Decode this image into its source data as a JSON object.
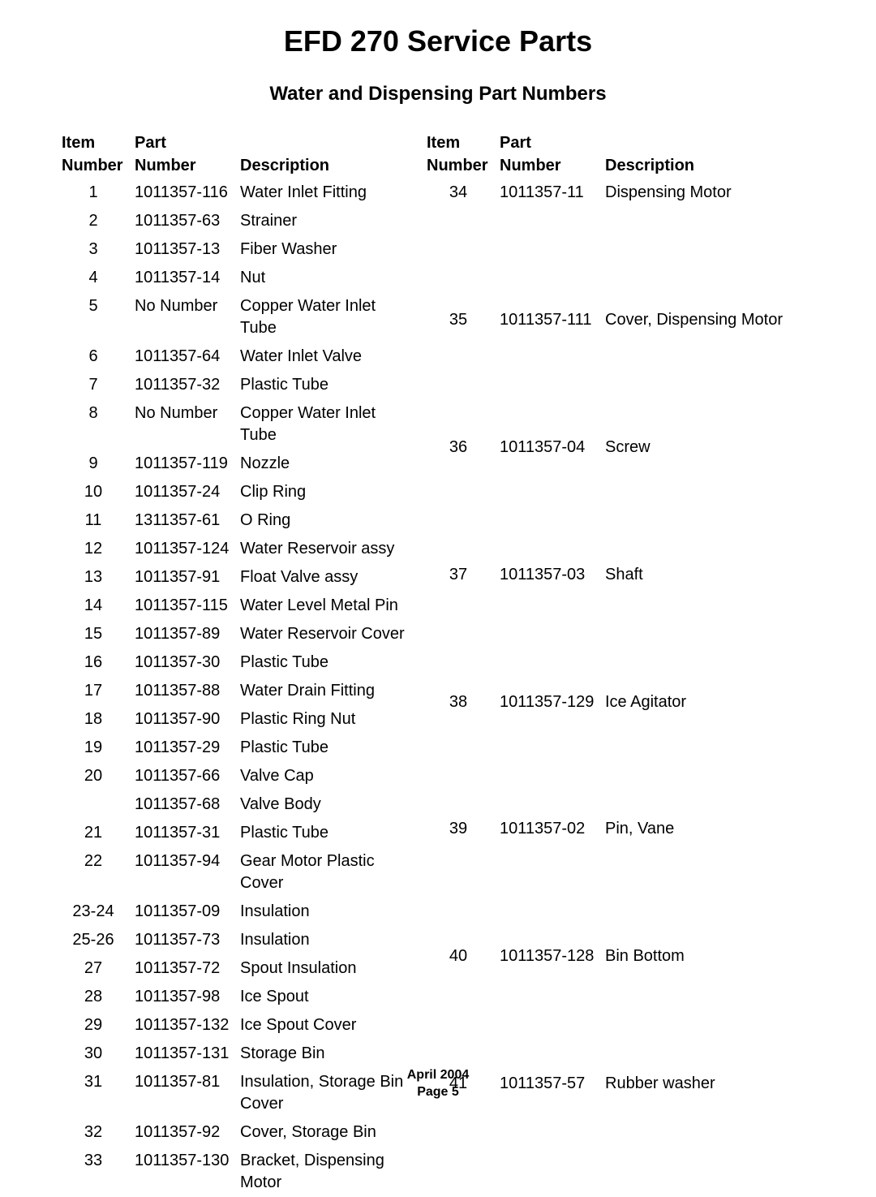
{
  "title": "EFD 270 Service Parts",
  "subtitle": "Water and Dispensing Part Numbers",
  "headers": {
    "item_number_line1": "Item",
    "item_number_line2": "Number",
    "part_number_line1": "Part",
    "part_number_line2": "Number",
    "description": "Description"
  },
  "left_rows": [
    {
      "item": "1",
      "part": "1011357-116",
      "desc": "Water Inlet Fitting"
    },
    {
      "item": "2",
      "part": "1011357-63",
      "desc": "Strainer"
    },
    {
      "item": "3",
      "part": "1011357-13",
      "desc": "Fiber Washer"
    },
    {
      "item": "4",
      "part": "1011357-14",
      "desc": "Nut"
    },
    {
      "item": "5",
      "part": "No Number",
      "desc": "Copper Water Inlet Tube"
    },
    {
      "item": "6",
      "part": "1011357-64",
      "desc": "Water Inlet Valve"
    },
    {
      "item": "7",
      "part": "1011357-32",
      "desc": "Plastic Tube"
    },
    {
      "item": "8",
      "part": "No Number",
      "desc": "Copper Water Inlet Tube"
    },
    {
      "item": "9",
      "part": "1011357-119",
      "desc": "Nozzle"
    },
    {
      "item": "10",
      "part": "1011357-24",
      "desc": "Clip Ring"
    },
    {
      "item": "11",
      "part": "1311357-61",
      "desc": "O Ring"
    },
    {
      "item": "12",
      "part": "1011357-124",
      "desc": "Water Reservoir assy"
    },
    {
      "item": "13",
      "part": "1011357-91",
      "desc": "Float Valve assy"
    },
    {
      "item": "14",
      "part": "1011357-115",
      "desc": "Water Level Metal Pin"
    },
    {
      "item": "15",
      "part": "1011357-89",
      "desc": "Water Reservoir Cover"
    },
    {
      "item": "16",
      "part": "1011357-30",
      "desc": "Plastic Tube"
    },
    {
      "item": "17",
      "part": "1011357-88",
      "desc": "Water Drain Fitting"
    },
    {
      "item": "18",
      "part": "1011357-90",
      "desc": "Plastic Ring Nut"
    },
    {
      "item": "19",
      "part": "1011357-29",
      "desc": "Plastic Tube"
    },
    {
      "item": "20",
      "part": "1011357-66",
      "desc": "Valve Cap"
    },
    {
      "item": "",
      "part": "1011357-68",
      "desc": "Valve Body"
    },
    {
      "item": "21",
      "part": "1011357-31",
      "desc": "Plastic Tube"
    },
    {
      "item": "22",
      "part": "1011357-94",
      "desc": "Gear Motor Plastic Cover"
    },
    {
      "item": "23-24",
      "part": "1011357-09",
      "desc": "Insulation"
    },
    {
      "item": "25-26",
      "part": "1011357-73",
      "desc": "Insulation"
    },
    {
      "item": "27",
      "part": "1011357-72",
      "desc": "Spout Insulation"
    },
    {
      "item": "28",
      "part": "1011357-98",
      "desc": "Ice Spout"
    },
    {
      "item": "29",
      "part": "1011357-132",
      "desc": "Ice Spout Cover"
    },
    {
      "item": "30",
      "part": "1011357-131",
      "desc": "Storage Bin"
    },
    {
      "item": "31",
      "part": "1011357-81",
      "desc": "Insulation, Storage Bin Cover"
    },
    {
      "item": "32",
      "part": "1011357-92",
      "desc": "Cover, Storage Bin"
    },
    {
      "item": "33",
      "part": "1011357-130",
      "desc": "Bracket, Dispensing Motor"
    }
  ],
  "right_rows": [
    {
      "item": "34",
      "part": "1011357-11",
      "desc": "Dispensing Motor"
    },
    {
      "item": "35",
      "part": "1011357-111",
      "desc": "Cover, Dispensing Motor"
    },
    {
      "item": "36",
      "part": "1011357-04",
      "desc": "Screw"
    },
    {
      "item": "37",
      "part": "1011357-03",
      "desc": "Shaft"
    },
    {
      "item": "38",
      "part": "1011357-129",
      "desc": "Ice Agitator"
    },
    {
      "item": "39",
      "part": "1011357-02",
      "desc": "Pin, Vane"
    },
    {
      "item": "40",
      "part": "1011357-128",
      "desc": "Bin Bottom"
    },
    {
      "item": "41",
      "part": "1011357-57",
      "desc": "Rubber washer"
    }
  ],
  "footer": {
    "date": "April 2004",
    "page": "Page 5"
  }
}
